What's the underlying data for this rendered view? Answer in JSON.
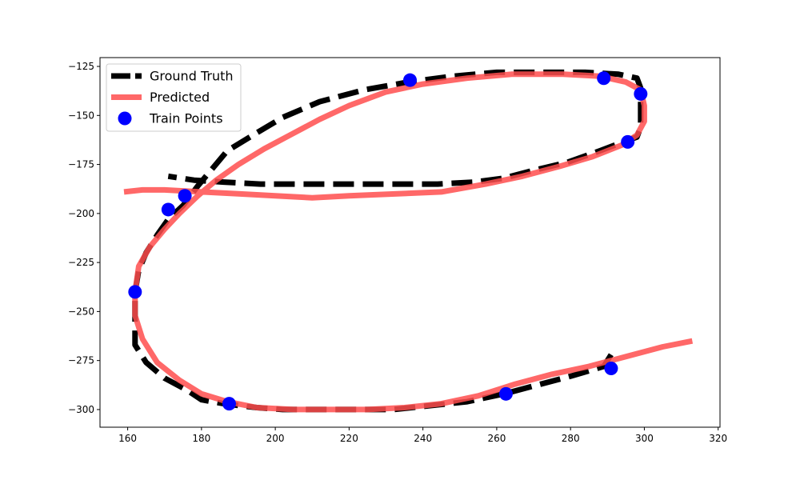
{
  "chart_data": {
    "type": "line",
    "title": "",
    "xlabel": "",
    "ylabel": "",
    "xlim": [
      152.5,
      320.5
    ],
    "ylim": [
      -309,
      -120.5
    ],
    "xticks": [
      160,
      180,
      200,
      220,
      240,
      260,
      280,
      300,
      320
    ],
    "yticks": [
      -125,
      -150,
      -175,
      -200,
      -225,
      -250,
      -275,
      -300
    ],
    "grid": false,
    "legend_position": "top-left",
    "series": [
      {
        "name": "Ground Truth",
        "style": "dashed",
        "color": "#000000",
        "points": [
          [
            291,
            -272
          ],
          [
            289,
            -278
          ],
          [
            280,
            -283
          ],
          [
            270,
            -288
          ],
          [
            262,
            -292
          ],
          [
            252,
            -296
          ],
          [
            242,
            -298
          ],
          [
            232,
            -300
          ],
          [
            222,
            -300
          ],
          [
            212,
            -300
          ],
          [
            202,
            -300
          ],
          [
            195,
            -299
          ],
          [
            186,
            -297
          ],
          [
            180,
            -295
          ],
          [
            176,
            -290
          ],
          [
            170,
            -284
          ],
          [
            165,
            -276
          ],
          [
            162,
            -267
          ],
          [
            162,
            -255
          ],
          [
            162,
            -240
          ],
          [
            163,
            -229
          ],
          [
            165,
            -220
          ],
          [
            168,
            -211
          ],
          [
            171,
            -203
          ],
          [
            175,
            -196
          ],
          [
            179,
            -186
          ],
          [
            183,
            -177
          ],
          [
            187,
            -168
          ],
          [
            194,
            -160
          ],
          [
            202,
            -151
          ],
          [
            212,
            -143
          ],
          [
            224,
            -137
          ],
          [
            236,
            -133
          ],
          [
            248,
            -130
          ],
          [
            260,
            -128
          ],
          [
            272,
            -128
          ],
          [
            284,
            -128
          ],
          [
            293,
            -129
          ],
          [
            298,
            -131
          ],
          [
            299,
            -136
          ],
          [
            299,
            -143
          ],
          [
            299,
            -150
          ],
          [
            299,
            -156
          ],
          [
            298,
            -161
          ],
          [
            295,
            -163
          ],
          [
            288,
            -168
          ],
          [
            279,
            -174
          ],
          [
            270,
            -178
          ],
          [
            262,
            -182
          ],
          [
            254,
            -184
          ],
          [
            244,
            -185
          ],
          [
            232,
            -185
          ],
          [
            220,
            -185
          ],
          [
            208,
            -185
          ],
          [
            196,
            -185
          ],
          [
            186,
            -184
          ],
          [
            178,
            -183
          ],
          [
            171,
            -181
          ]
        ]
      },
      {
        "name": "Predicted",
        "style": "solid",
        "color": "#ff4d4d",
        "points": [
          [
            313,
            -265
          ],
          [
            305,
            -268
          ],
          [
            295,
            -273
          ],
          [
            285,
            -278
          ],
          [
            275,
            -282
          ],
          [
            265,
            -287
          ],
          [
            255,
            -293
          ],
          [
            245,
            -297
          ],
          [
            235,
            -299
          ],
          [
            225,
            -300
          ],
          [
            215,
            -300
          ],
          [
            205,
            -300
          ],
          [
            195,
            -299
          ],
          [
            187,
            -296
          ],
          [
            180,
            -292
          ],
          [
            174,
            -285
          ],
          [
            168,
            -276
          ],
          [
            164,
            -264
          ],
          [
            162,
            -252
          ],
          [
            162,
            -240
          ],
          [
            163,
            -227
          ],
          [
            166,
            -217
          ],
          [
            170,
            -208
          ],
          [
            174,
            -200
          ],
          [
            179,
            -191
          ],
          [
            184,
            -183
          ],
          [
            190,
            -175
          ],
          [
            197,
            -167
          ],
          [
            204,
            -160
          ],
          [
            212,
            -152
          ],
          [
            220,
            -145
          ],
          [
            230,
            -138
          ],
          [
            240,
            -134
          ],
          [
            252,
            -131
          ],
          [
            264,
            -129
          ],
          [
            278,
            -129
          ],
          [
            288,
            -130
          ],
          [
            295,
            -133
          ],
          [
            299,
            -137
          ],
          [
            300,
            -145
          ],
          [
            300,
            -153
          ],
          [
            298,
            -160
          ],
          [
            294,
            -165
          ],
          [
            286,
            -171
          ],
          [
            277,
            -176
          ],
          [
            267,
            -181
          ],
          [
            257,
            -185
          ],
          [
            245,
            -189
          ],
          [
            233,
            -190
          ],
          [
            220,
            -191
          ],
          [
            210,
            -192
          ],
          [
            200,
            -191
          ],
          [
            190,
            -190
          ],
          [
            180,
            -189
          ],
          [
            170,
            -188
          ],
          [
            164,
            -188
          ],
          [
            159,
            -189
          ]
        ]
      },
      {
        "name": "Train Points",
        "style": "markers",
        "color": "#0000ff",
        "points": [
          [
            236.5,
            -132
          ],
          [
            289,
            -131
          ],
          [
            299,
            -139
          ],
          [
            295.5,
            -163.5
          ],
          [
            175.5,
            -191
          ],
          [
            171,
            -198
          ],
          [
            162,
            -240
          ],
          [
            187.5,
            -297
          ],
          [
            262.5,
            -292
          ],
          [
            291,
            -279
          ]
        ]
      }
    ]
  }
}
